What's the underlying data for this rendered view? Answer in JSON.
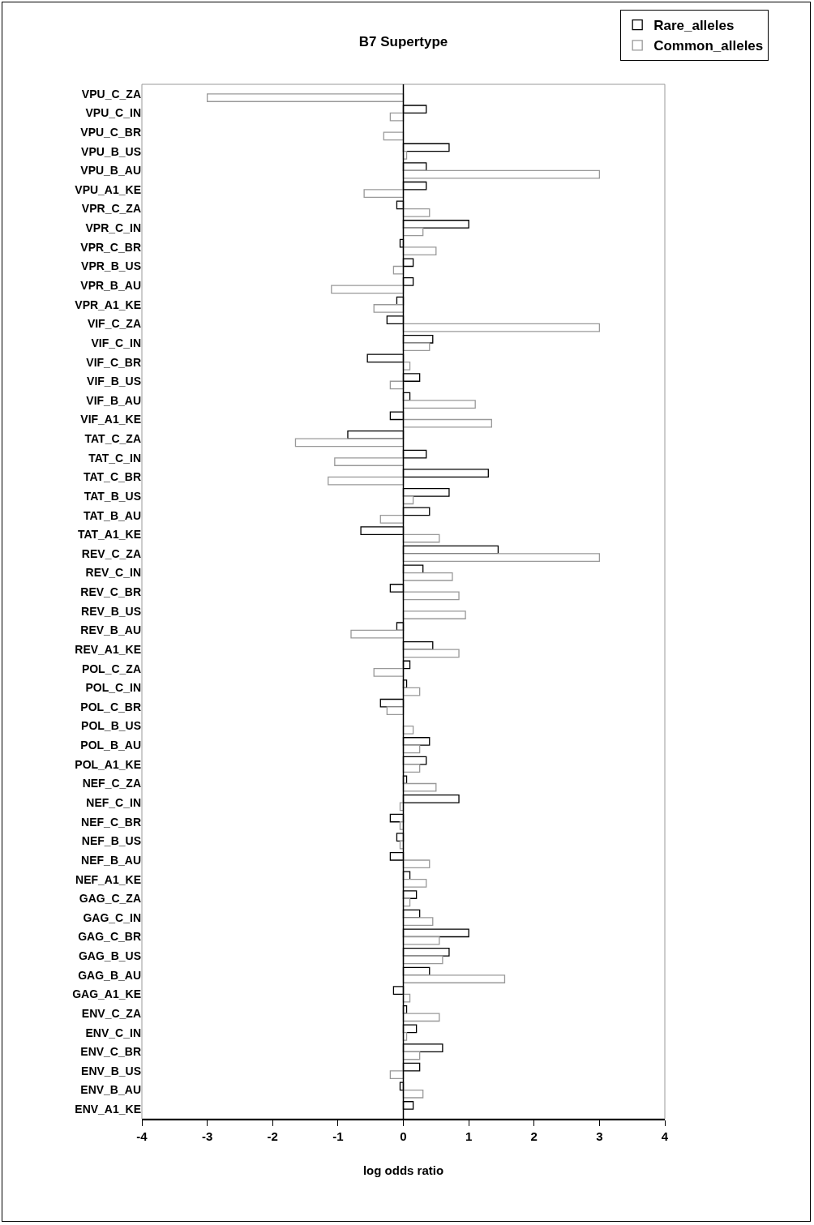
{
  "chart_data": {
    "type": "bar",
    "orientation": "horizontal",
    "title": "B7 Supertype",
    "xlabel": "log odds ratio",
    "categories": [
      "VPU_C_ZA",
      "VPU_C_IN",
      "VPU_C_BR",
      "VPU_B_US",
      "VPU_B_AU",
      "VPU_A1_KE",
      "VPR_C_ZA",
      "VPR_C_IN",
      "VPR_C_BR",
      "VPR_B_US",
      "VPR_B_AU",
      "VPR_A1_KE",
      "VIF_C_ZA",
      "VIF_C_IN",
      "VIF_C_BR",
      "VIF_B_US",
      "VIF_B_AU",
      "VIF_A1_KE",
      "TAT_C_ZA",
      "TAT_C_IN",
      "TAT_C_BR",
      "TAT_B_US",
      "TAT_B_AU",
      "TAT_A1_KE",
      "REV_C_ZA",
      "REV_C_IN",
      "REV_C_BR",
      "REV_B_US",
      "REV_B_AU",
      "REV_A1_KE",
      "POL_C_ZA",
      "POL_C_IN",
      "POL_C_BR",
      "POL_B_US",
      "POL_B_AU",
      "POL_A1_KE",
      "NEF_C_ZA",
      "NEF_C_IN",
      "NEF_C_BR",
      "NEF_B_US",
      "NEF_B_AU",
      "NEF_A1_KE",
      "GAG_C_ZA",
      "GAG_C_IN",
      "GAG_C_BR",
      "GAG_B_US",
      "GAG_B_AU",
      "GAG_A1_KE",
      "ENV_C_ZA",
      "ENV_C_IN",
      "ENV_C_BR",
      "ENV_B_US",
      "ENV_B_AU",
      "ENV_A1_KE"
    ],
    "series": [
      {
        "name": "Rare_alleles",
        "color": "#000000",
        "values": [
          null,
          0.35,
          null,
          0.7,
          0.35,
          0.35,
          -0.1,
          1.0,
          -0.05,
          0.15,
          0.15,
          -0.1,
          -0.25,
          0.45,
          -0.55,
          0.25,
          0.1,
          -0.2,
          -0.85,
          0.35,
          1.3,
          0.7,
          0.4,
          -0.65,
          1.45,
          0.3,
          -0.2,
          null,
          -0.1,
          0.45,
          0.1,
          0.05,
          -0.35,
          null,
          0.4,
          0.35,
          0.05,
          0.85,
          -0.2,
          -0.1,
          -0.2,
          0.1,
          0.2,
          0.25,
          1.0,
          0.7,
          0.4,
          -0.15,
          0.05,
          0.2,
          0.6,
          0.25,
          -0.05,
          0.15
        ]
      },
      {
        "name": "Common_alleles",
        "color": "#999999",
        "values": [
          -3.0,
          -0.2,
          -0.3,
          0.05,
          3.0,
          -0.6,
          0.4,
          0.3,
          0.5,
          -0.15,
          -1.1,
          -0.45,
          3.0,
          0.4,
          0.1,
          -0.2,
          1.1,
          1.35,
          -1.65,
          -1.05,
          -1.15,
          0.15,
          -0.35,
          0.55,
          3.0,
          0.75,
          0.85,
          0.95,
          -0.8,
          0.85,
          -0.45,
          0.25,
          -0.25,
          0.15,
          0.25,
          0.25,
          0.5,
          -0.05,
          -0.05,
          -0.05,
          0.4,
          0.35,
          0.1,
          0.45,
          0.55,
          0.6,
          1.55,
          0.1,
          0.55,
          0.05,
          0.25,
          -0.2,
          0.3,
          null
        ]
      }
    ],
    "xlim": [
      -4,
      4
    ],
    "xticks": [
      -4,
      -3,
      -2,
      -1,
      0,
      1,
      2,
      3,
      4
    ],
    "grid": false,
    "ref_lines": [
      {
        "axis": "x",
        "value": 0,
        "color": "#000000"
      }
    ],
    "legend": "top right"
  }
}
